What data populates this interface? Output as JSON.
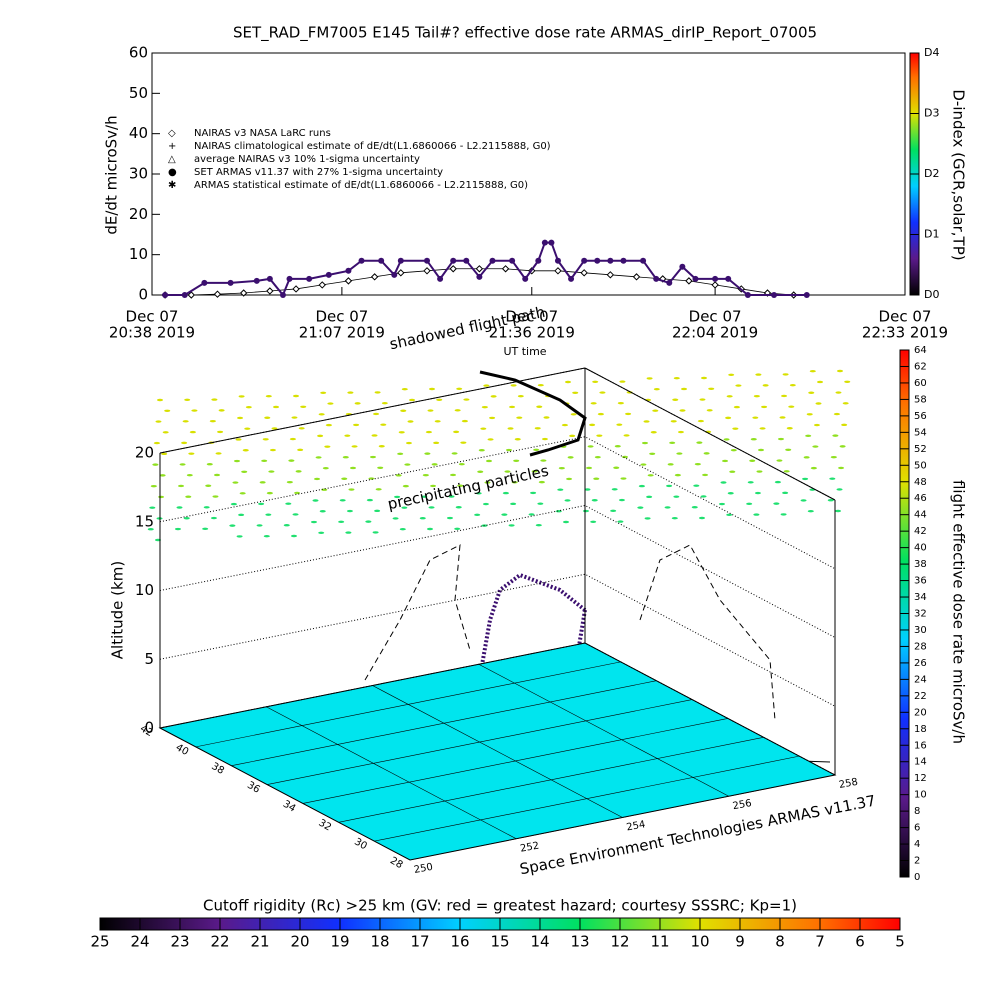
{
  "chart_data": [
    {
      "type": "line",
      "title": "SET_RAD_FM7005  E145 Tail#? effective dose rate ARMAS_dirIP_Report_07005",
      "ylabel": "dE/dt microSv/h",
      "xlabel": "UT time",
      "xlim": [
        0,
        115
      ],
      "xticks": [
        {
          "value": 0,
          "label": [
            "Dec 07",
            "20:38 2019"
          ]
        },
        {
          "value": 29,
          "label": [
            "Dec 07",
            "21:07 2019"
          ]
        },
        {
          "value": 58,
          "label": [
            "Dec 07",
            "21:36 2019"
          ]
        },
        {
          "value": 86,
          "label": [
            "Dec 07",
            "22:04 2019"
          ]
        },
        {
          "value": 115,
          "label": [
            "Dec 07",
            "22:33 2019"
          ]
        }
      ],
      "ylim": [
        0,
        60
      ],
      "yticks": [
        0,
        10,
        20,
        30,
        40,
        50,
        60
      ],
      "y2label": "D-index (GCR,solar,TP)",
      "y2lim": [
        0,
        4
      ],
      "y2ticks": [
        {
          "value": 0,
          "label": "D0"
        },
        {
          "value": 1,
          "label": "D1"
        },
        {
          "value": 2,
          "label": "D2"
        },
        {
          "value": 3,
          "label": "D3"
        },
        {
          "value": 4,
          "label": "D4"
        }
      ],
      "legend": [
        "NAIRAS v3 NASA LaRC runs",
        "NAIRAS climatological estimate of dE/dt(L1.6860066 - L2.2115888, G0)",
        "average NAIRAS v3 10% 1-sigma uncertainty",
        "SET ARMAS v11.37 with 27% 1-sigma uncertainty",
        "ARMAS statistical estimate of dE/dt(L1.6860066 - L2.2115888, G0)"
      ],
      "series": [
        {
          "marker": "diamond",
          "color": "#000000",
          "x": [
            2,
            6,
            10,
            14,
            18,
            22,
            26,
            30,
            34,
            38,
            42,
            46,
            50,
            54,
            58,
            62,
            66,
            70,
            74,
            78,
            82,
            86,
            90,
            94,
            98
          ],
          "values": [
            0,
            0,
            0.2,
            0.5,
            1,
            1.5,
            2.5,
            3.5,
            4.5,
            5.5,
            6,
            6.5,
            6.5,
            6.5,
            6,
            6,
            5.5,
            5,
            4.5,
            4,
            3.5,
            2.5,
            1.5,
            0.5,
            0
          ]
        },
        {
          "marker": "circle",
          "color": "#3b0f6f",
          "x": [
            2,
            5,
            8,
            12,
            16,
            18,
            20,
            21,
            24,
            27,
            30,
            32,
            35,
            37,
            38,
            42,
            44,
            46,
            48,
            50,
            52,
            55,
            57,
            59,
            60,
            61,
            62,
            64,
            66,
            68,
            70,
            72,
            75,
            77,
            79,
            81,
            83,
            86,
            88,
            91,
            95,
            100
          ],
          "values": [
            0,
            0,
            3,
            3,
            3.5,
            4,
            0,
            4,
            4,
            5,
            6,
            8.5,
            8.5,
            5,
            8.5,
            8.5,
            4,
            8.5,
            8.5,
            4.5,
            8.5,
            8.5,
            4,
            8.5,
            13,
            13,
            8.5,
            4,
            8.5,
            8.5,
            8.5,
            8.5,
            8.5,
            4,
            3,
            7,
            4,
            4,
            4,
            0,
            0,
            0
          ]
        }
      ]
    },
    {
      "type": "3d",
      "annotations": [
        "shadowed flight path",
        "precipitating particles",
        "Space Environment Technologies ARMAS v11.37"
      ],
      "zlabel": "Altitude (km)",
      "zlim": [
        0,
        20
      ],
      "zticks": [
        0,
        5,
        10,
        15,
        20
      ],
      "ylim": [
        28,
        42
      ],
      "yticks": [
        28,
        30,
        32,
        34,
        36,
        38,
        40,
        42
      ],
      "xlim": [
        250,
        258
      ],
      "xticks": [
        250,
        252,
        254,
        256,
        258
      ],
      "floor_color": "#00e5ee"
    },
    {
      "type": "colorbar",
      "orientation": "vertical",
      "label": "flight effective dose rate microSv/h",
      "lim": [
        0,
        64
      ],
      "ticks": [
        0,
        2,
        4,
        6,
        8,
        10,
        12,
        14,
        16,
        18,
        20,
        22,
        24,
        26,
        28,
        30,
        32,
        34,
        36,
        38,
        40,
        42,
        44,
        46,
        48,
        50,
        52,
        54,
        56,
        58,
        60,
        62,
        64
      ]
    },
    {
      "type": "colorbar",
      "orientation": "horizontal",
      "label": "Cutoff rigidity (Rc) >25 km (GV: red = greatest hazard; courtesy SSSRC; Kp=1)",
      "lim": [
        25,
        5
      ],
      "ticks": [
        25,
        24,
        23,
        22,
        21,
        20,
        19,
        18,
        17,
        16,
        15,
        14,
        13,
        12,
        11,
        10,
        9,
        8,
        7,
        6,
        5
      ]
    }
  ]
}
